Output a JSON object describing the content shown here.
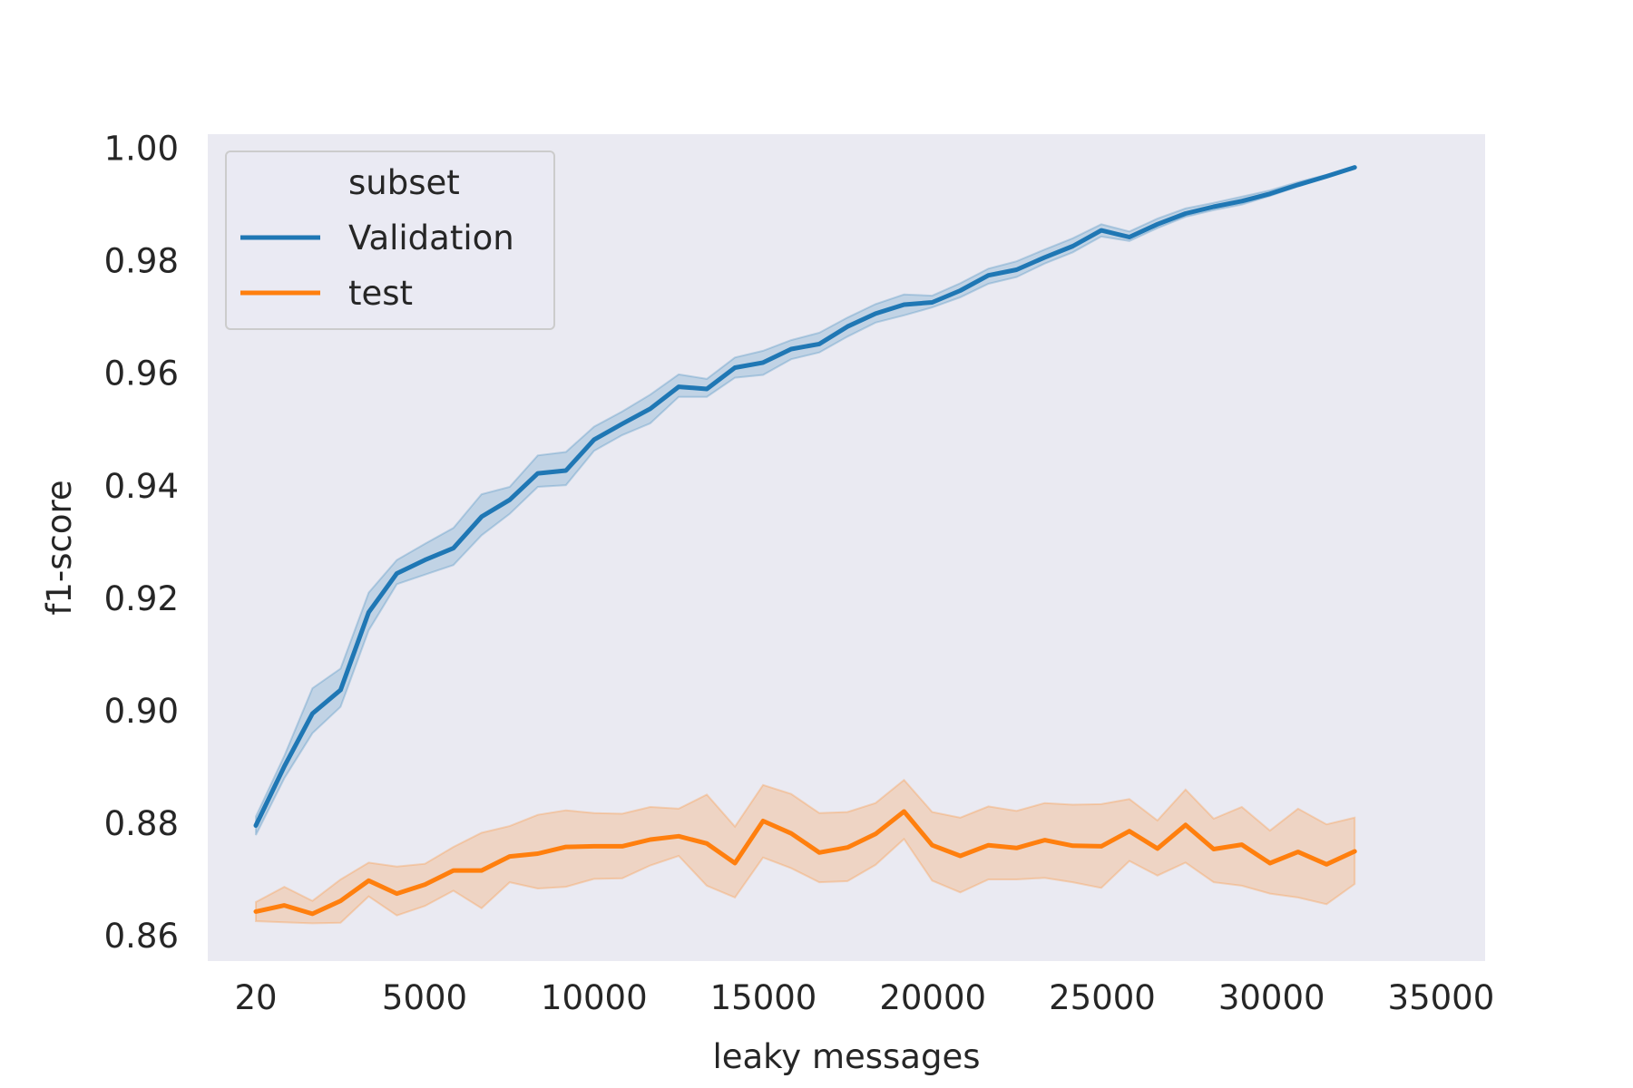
{
  "chart_data": {
    "type": "line",
    "xlabel": "leaky messages",
    "ylabel": "f1-score",
    "xlim": [
      -1400,
      36300
    ],
    "ylim": [
      0.8555,
      1.0025
    ],
    "xticks": [
      20,
      5000,
      10000,
      15000,
      20000,
      25000,
      30000,
      35000
    ],
    "xtick_labels": [
      "20",
      "5000",
      "10000",
      "15000",
      "20000",
      "25000",
      "30000",
      "35000"
    ],
    "yticks": [
      0.86,
      0.88,
      0.9,
      0.92,
      0.94,
      0.96,
      0.98,
      1.0
    ],
    "ytick_labels": [
      "0.86",
      "0.88",
      "0.90",
      "0.92",
      "0.94",
      "0.96",
      "0.98",
      "1.00"
    ],
    "grid": false,
    "background": "#eaeaf2",
    "legend": {
      "title": "subset",
      "placement": "top-left"
    },
    "x": [
      20,
      860,
      1690,
      2520,
      3350,
      4180,
      5010,
      5850,
      6680,
      7510,
      8340,
      9170,
      10000,
      10830,
      11660,
      12500,
      13330,
      14160,
      14990,
      15820,
      16650,
      17480,
      18310,
      19150,
      19980,
      20810,
      21640,
      22470,
      23300,
      24130,
      24970,
      25800,
      26630,
      27460,
      28290,
      29120,
      29950,
      30780,
      31620,
      32450
    ],
    "series": [
      {
        "name": "Validation",
        "color": "#1f77b4",
        "values": [
          0.8796,
          0.8901,
          0.8995,
          0.9037,
          0.9175,
          0.9244,
          0.9268,
          0.9289,
          0.9345,
          0.9375,
          0.9422,
          0.9427,
          0.9482,
          0.951,
          0.9537,
          0.9576,
          0.9572,
          0.961,
          0.9619,
          0.9643,
          0.9652,
          0.9683,
          0.9706,
          0.9722,
          0.9726,
          0.9747,
          0.9774,
          0.9784,
          0.9806,
          0.9826,
          0.9854,
          0.9842,
          0.9865,
          0.9884,
          0.9896,
          0.9906,
          0.9919,
          0.9935,
          0.995,
          0.9966
        ],
        "ci_lower": [
          0.8779,
          0.888,
          0.896,
          0.9007,
          0.9143,
          0.9225,
          0.9242,
          0.9259,
          0.9312,
          0.935,
          0.9398,
          0.9401,
          0.9462,
          0.949,
          0.9511,
          0.9558,
          0.9558,
          0.9592,
          0.9597,
          0.9625,
          0.9637,
          0.9665,
          0.969,
          0.9703,
          0.9717,
          0.9735,
          0.9759,
          0.9771,
          0.9795,
          0.9815,
          0.9843,
          0.9835,
          0.9858,
          0.9878,
          0.989,
          0.99,
          0.9915,
          0.9932,
          0.9948,
          0.9965
        ],
        "ci_upper": [
          0.8812,
          0.892,
          0.904,
          0.9075,
          0.921,
          0.9268,
          0.9297,
          0.9325,
          0.9385,
          0.9398,
          0.9454,
          0.946,
          0.9505,
          0.9532,
          0.9562,
          0.9598,
          0.959,
          0.9628,
          0.964,
          0.9659,
          0.9672,
          0.9699,
          0.9723,
          0.974,
          0.9738,
          0.976,
          0.9786,
          0.9799,
          0.982,
          0.984,
          0.9865,
          0.9852,
          0.9875,
          0.9893,
          0.9903,
          0.9914,
          0.9925,
          0.994,
          0.9953,
          0.9967
        ]
      },
      {
        "name": "test",
        "color": "#ff7f0e",
        "values": [
          0.8643,
          0.8654,
          0.8639,
          0.8662,
          0.8698,
          0.8675,
          0.8691,
          0.8716,
          0.8716,
          0.8741,
          0.8746,
          0.8758,
          0.8759,
          0.8759,
          0.8771,
          0.8777,
          0.8764,
          0.8729,
          0.8804,
          0.8782,
          0.8748,
          0.8757,
          0.8781,
          0.8821,
          0.8761,
          0.8742,
          0.8761,
          0.8756,
          0.877,
          0.876,
          0.8759,
          0.8786,
          0.8755,
          0.8797,
          0.8754,
          0.8762,
          0.8729,
          0.8749,
          0.8727,
          0.875
        ],
        "ci_lower": [
          0.8626,
          0.8624,
          0.8622,
          0.8623,
          0.867,
          0.8636,
          0.8653,
          0.868,
          0.8649,
          0.8695,
          0.8684,
          0.8687,
          0.8701,
          0.8702,
          0.8725,
          0.8742,
          0.8689,
          0.8668,
          0.8739,
          0.872,
          0.8695,
          0.8697,
          0.8726,
          0.8772,
          0.8698,
          0.8677,
          0.87,
          0.87,
          0.8703,
          0.8695,
          0.8685,
          0.8733,
          0.8707,
          0.873,
          0.8695,
          0.8689,
          0.8675,
          0.8668,
          0.8656,
          0.8692
        ],
        "ci_upper": [
          0.866,
          0.8687,
          0.8662,
          0.87,
          0.873,
          0.8723,
          0.8728,
          0.8758,
          0.8783,
          0.8795,
          0.8815,
          0.8823,
          0.8818,
          0.8817,
          0.8829,
          0.8826,
          0.8851,
          0.8794,
          0.8868,
          0.8852,
          0.8818,
          0.882,
          0.8836,
          0.8877,
          0.882,
          0.881,
          0.883,
          0.8822,
          0.8836,
          0.8833,
          0.8834,
          0.8843,
          0.8805,
          0.886,
          0.8808,
          0.8829,
          0.8787,
          0.8826,
          0.8798,
          0.881
        ]
      }
    ]
  }
}
